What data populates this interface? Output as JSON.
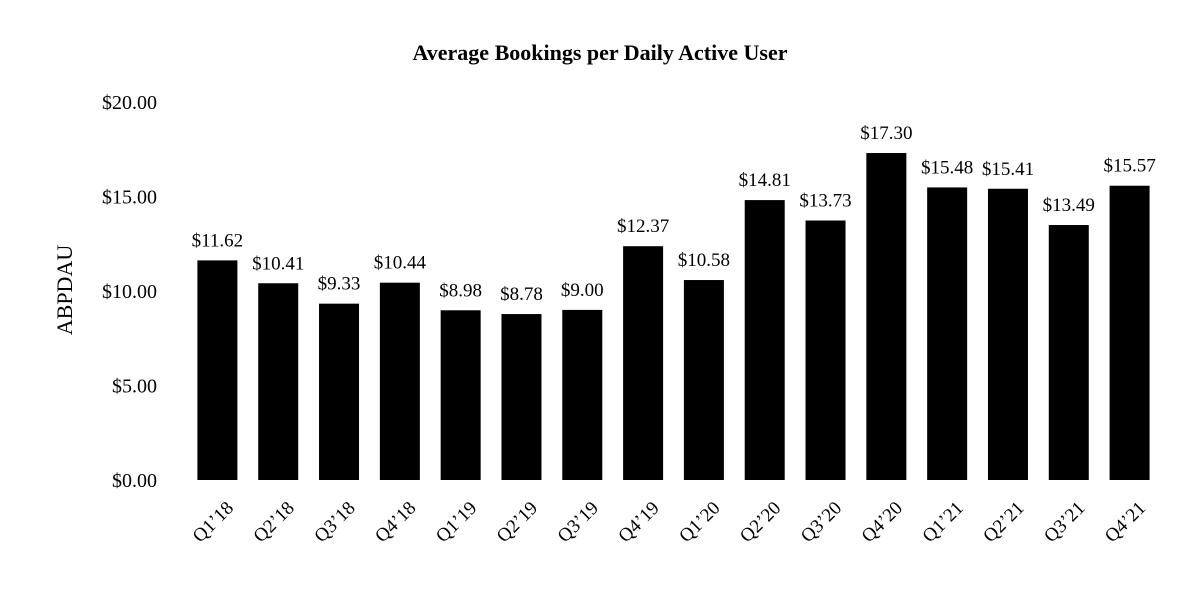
{
  "chart_data": {
    "type": "bar",
    "title": "Average Bookings per Daily Active User",
    "xlabel": "",
    "ylabel": "ABPDAU",
    "ylim": [
      0,
      20
    ],
    "y_ticks": [
      0,
      5,
      10,
      15,
      20
    ],
    "y_tick_labels": [
      "$0.00",
      "$5.00",
      "$10.00",
      "$15.00",
      "$20.00"
    ],
    "grid": false,
    "legend": "none",
    "bar_color": "#000000",
    "categories": [
      "Q1’18",
      "Q2’18",
      "Q3’18",
      "Q4’18",
      "Q1’19",
      "Q2’19",
      "Q3’19",
      "Q4’19",
      "Q1’20",
      "Q2’20",
      "Q3’20",
      "Q4’20",
      "Q1’21",
      "Q2’21",
      "Q3’21",
      "Q4’21"
    ],
    "values": [
      11.62,
      10.41,
      9.33,
      10.44,
      8.98,
      8.78,
      9.0,
      12.37,
      10.58,
      14.81,
      13.73,
      17.3,
      15.48,
      15.41,
      13.49,
      15.57
    ],
    "data_labels": [
      "$11.62",
      "$10.41",
      "$9.33",
      "$10.44",
      "$8.98",
      "$8.78",
      "$9.00",
      "$12.37",
      "$10.58",
      "$14.81",
      "$13.73",
      "$17.30",
      "$15.48",
      "$15.41",
      "$13.49",
      "$15.57"
    ]
  }
}
